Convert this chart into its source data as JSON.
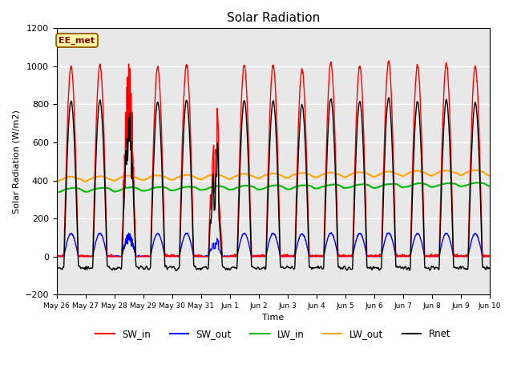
{
  "title": "Solar Radiation",
  "ylabel": "Solar Radiation (W/m2)",
  "xlabel": "Time",
  "ylim": [
    -200,
    1200
  ],
  "annotation_text": "EE_met",
  "series": {
    "SW_in": {
      "color": "#FF0000",
      "lw": 1.0
    },
    "SW_out": {
      "color": "#0000FF",
      "lw": 1.0
    },
    "LW_in": {
      "color": "#00BB00",
      "lw": 1.5
    },
    "LW_out": {
      "color": "#FFA500",
      "lw": 1.5
    },
    "Rnet": {
      "color": "#000000",
      "lw": 1.0
    }
  },
  "xtick_labels": [
    "May 26",
    "May 27",
    "May 28",
    "May 29",
    "May 30",
    "May 31",
    "Jun 1",
    "Jun 2",
    "Jun 3",
    "Jun 4",
    "Jun 5",
    "Jun 6",
    "Jun 7",
    "Jun 8",
    "Jun 9",
    "Jun 10"
  ],
  "n_days": 15,
  "pts_per_day": 144,
  "bg_color": "#E8E8E8",
  "grid_color": "#FFFFFF"
}
